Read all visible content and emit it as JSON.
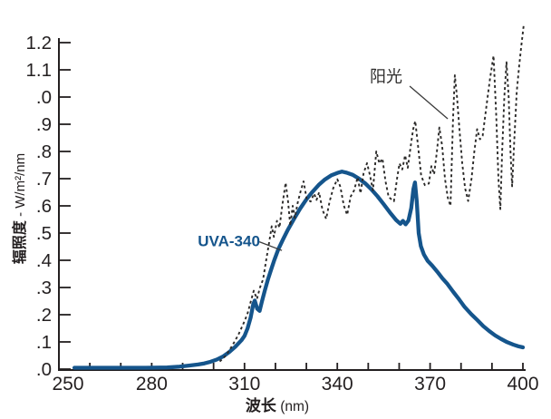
{
  "chart_data": {
    "type": "line",
    "title": "",
    "xlabel": "波长 (nm)",
    "xlabel_parts": {
      "cjk": "波长",
      "unit": " (nm)"
    },
    "ylabel": "辐照度 - W/m²/nm",
    "ylabel_parts": {
      "cjk": "辐照度",
      "unit": " - W/m²/nm"
    },
    "xlim": [
      250,
      400
    ],
    "ylim": [
      0,
      1.2
    ],
    "grid": false,
    "legend_position": "inline-annotations",
    "x_minor_tick_step_nm": 10,
    "x_major_ticks": [
      250,
      280,
      310,
      340,
      370,
      400
    ],
    "x_major_tick_labels": [
      "250",
      "280",
      "310",
      "340",
      "370",
      "400"
    ],
    "y_tick_step": 0.1,
    "y_tick_values_top_to_bottom": [
      1.2,
      1.1,
      1.0,
      0.9,
      0.8,
      0.7,
      0.6,
      0.5,
      0.4,
      0.3,
      0.2,
      0.1,
      0.0
    ],
    "y_tick_labels_top_to_bottom": [
      "1.2",
      "1.1",
      ".0",
      ".9",
      ".8",
      ".7",
      ".6",
      ".5",
      ".4",
      ".3",
      ".2",
      ".1",
      ".0"
    ],
    "axis_color": "#231f20",
    "series": [
      {
        "name": "UVA-340",
        "color": "#15558c",
        "line_style": "solid",
        "stroke_width": 4.3,
        "points": [
          [
            255,
            0.005
          ],
          [
            262,
            0.005
          ],
          [
            270,
            0.005
          ],
          [
            278,
            0.005
          ],
          [
            285,
            0.006
          ],
          [
            289,
            0.009
          ],
          [
            292,
            0.013
          ],
          [
            295,
            0.017
          ],
          [
            297,
            0.021
          ],
          [
            299,
            0.027
          ],
          [
            301,
            0.035
          ],
          [
            303,
            0.046
          ],
          [
            305,
            0.062
          ],
          [
            307,
            0.082
          ],
          [
            309,
            0.106
          ],
          [
            310,
            0.122
          ],
          [
            311,
            0.15
          ],
          [
            312,
            0.19
          ],
          [
            312.8,
            0.238
          ],
          [
            313.3,
            0.252
          ],
          [
            314.1,
            0.222
          ],
          [
            314.9,
            0.214
          ],
          [
            315.6,
            0.247
          ],
          [
            316.6,
            0.29
          ],
          [
            317.6,
            0.33
          ],
          [
            318.6,
            0.366
          ],
          [
            319.6,
            0.4
          ],
          [
            321,
            0.442
          ],
          [
            322.5,
            0.478
          ],
          [
            324,
            0.512
          ],
          [
            326,
            0.552
          ],
          [
            328,
            0.59
          ],
          [
            330,
            0.624
          ],
          [
            332,
            0.652
          ],
          [
            334,
            0.677
          ],
          [
            336,
            0.697
          ],
          [
            338,
            0.712
          ],
          [
            340,
            0.721
          ],
          [
            341.5,
            0.726
          ],
          [
            343,
            0.722
          ],
          [
            345,
            0.714
          ],
          [
            347,
            0.7
          ],
          [
            349,
            0.683
          ],
          [
            351,
            0.661
          ],
          [
            353,
            0.635
          ],
          [
            355,
            0.606
          ],
          [
            357,
            0.576
          ],
          [
            359,
            0.548
          ],
          [
            360.4,
            0.534
          ],
          [
            361.2,
            0.545
          ],
          [
            362.1,
            0.532
          ],
          [
            363,
            0.546
          ],
          [
            363.9,
            0.592
          ],
          [
            364.6,
            0.662
          ],
          [
            365.1,
            0.686
          ],
          [
            365.7,
            0.615
          ],
          [
            366.3,
            0.5
          ],
          [
            367,
            0.452
          ],
          [
            368,
            0.421
          ],
          [
            369.2,
            0.398
          ],
          [
            370.7,
            0.38
          ],
          [
            372.3,
            0.358
          ],
          [
            374,
            0.333
          ],
          [
            375.6,
            0.313
          ],
          [
            377.4,
            0.285
          ],
          [
            379,
            0.262
          ],
          [
            381.2,
            0.228
          ],
          [
            383.3,
            0.202
          ],
          [
            385.3,
            0.18
          ],
          [
            387.2,
            0.158
          ],
          [
            389.1,
            0.14
          ],
          [
            391,
            0.124
          ],
          [
            392.9,
            0.111
          ],
          [
            394.9,
            0.099
          ],
          [
            396.9,
            0.09
          ],
          [
            398.5,
            0.084
          ],
          [
            400,
            0.08
          ]
        ]
      },
      {
        "name": "阳光",
        "color": "#2b2a29",
        "line_style": "dashed",
        "stroke_width": 1.9,
        "points": [
          [
            302,
            0.028
          ],
          [
            304,
            0.05
          ],
          [
            306,
            0.085
          ],
          [
            308,
            0.126
          ],
          [
            310,
            0.176
          ],
          [
            311,
            0.205
          ],
          [
            312,
            0.247
          ],
          [
            313,
            0.288
          ],
          [
            314,
            0.258
          ],
          [
            315,
            0.3
          ],
          [
            316,
            0.33
          ],
          [
            317,
            0.4
          ],
          [
            318,
            0.468
          ],
          [
            318.8,
            0.525
          ],
          [
            319.5,
            0.486
          ],
          [
            320.5,
            0.545
          ],
          [
            321.3,
            0.52
          ],
          [
            322.2,
            0.6
          ],
          [
            323.3,
            0.685
          ],
          [
            324.1,
            0.615
          ],
          [
            324.8,
            0.527
          ],
          [
            325.6,
            0.6
          ],
          [
            326.3,
            0.556
          ],
          [
            327.2,
            0.612
          ],
          [
            328.2,
            0.656
          ],
          [
            329.1,
            0.69
          ],
          [
            330.1,
            0.626
          ],
          [
            331.4,
            0.616
          ],
          [
            332.5,
            0.645
          ],
          [
            333.3,
            0.622
          ],
          [
            334.1,
            0.65
          ],
          [
            335.2,
            0.586
          ],
          [
            336.4,
            0.552
          ],
          [
            337.5,
            0.616
          ],
          [
            338.7,
            0.666
          ],
          [
            340,
            0.698
          ],
          [
            341,
            0.67
          ],
          [
            342.1,
            0.601
          ],
          [
            343.2,
            0.567
          ],
          [
            344.3,
            0.634
          ],
          [
            345.4,
            0.656
          ],
          [
            346.6,
            0.705
          ],
          [
            347.5,
            0.646
          ],
          [
            348.5,
            0.72
          ],
          [
            349.6,
            0.757
          ],
          [
            350.6,
            0.71
          ],
          [
            351.5,
            0.657
          ],
          [
            352.6,
            0.8
          ],
          [
            353.6,
            0.756
          ],
          [
            354.6,
            0.774
          ],
          [
            355.6,
            0.69
          ],
          [
            356.6,
            0.632
          ],
          [
            358.3,
            0.617
          ],
          [
            359.3,
            0.7
          ],
          [
            360.1,
            0.756
          ],
          [
            361,
            0.734
          ],
          [
            361.9,
            0.786
          ],
          [
            362.8,
            0.74
          ],
          [
            363.6,
            0.81
          ],
          [
            364.5,
            0.88
          ],
          [
            365.2,
            0.912
          ],
          [
            366.1,
            0.82
          ],
          [
            367.1,
            0.712
          ],
          [
            368.3,
            0.676
          ],
          [
            369.6,
            0.682
          ],
          [
            370.4,
            0.746
          ],
          [
            371.3,
            0.716
          ],
          [
            372.2,
            0.8
          ],
          [
            373,
            0.888
          ],
          [
            373.9,
            0.82
          ],
          [
            374.8,
            0.7
          ],
          [
            375.7,
            0.63
          ],
          [
            376.6,
            0.6
          ],
          [
            377.4,
            0.92
          ],
          [
            378,
            1.08
          ],
          [
            378.7,
            1.0
          ],
          [
            379.5,
            0.88
          ],
          [
            380.4,
            0.755
          ],
          [
            381.3,
            0.665
          ],
          [
            382.3,
            0.618
          ],
          [
            383.4,
            0.7
          ],
          [
            384.3,
            0.8
          ],
          [
            385.2,
            0.882
          ],
          [
            386.1,
            0.845
          ],
          [
            387,
            0.858
          ],
          [
            388.2,
            0.965
          ],
          [
            389.4,
            1.07
          ],
          [
            390.5,
            1.152
          ],
          [
            391.4,
            0.93
          ],
          [
            392.1,
            0.7
          ],
          [
            392.7,
            0.588
          ],
          [
            393.3,
            0.8
          ],
          [
            394,
            1.0
          ],
          [
            394.7,
            1.128
          ],
          [
            395.4,
            1.0
          ],
          [
            396,
            0.8
          ],
          [
            396.5,
            0.672
          ],
          [
            397.2,
            0.835
          ],
          [
            398,
            1.02
          ],
          [
            398.8,
            1.115
          ],
          [
            399.5,
            1.19
          ],
          [
            400.3,
            1.268
          ]
        ]
      }
    ],
    "annotations": [
      {
        "id": "sun",
        "text": "阳光",
        "color": "#2e2d2c",
        "bold": false,
        "font_size": 18,
        "anchor": "start",
        "label_data_xy": [
          350.5,
          1.055
        ],
        "leader_data": [
          [
            363.4,
            1.04
          ],
          [
            375.7,
            0.92
          ]
        ]
      },
      {
        "id": "uva340",
        "text": "UVA-340",
        "color": "#15558c",
        "bold": true,
        "font_size": 17,
        "anchor": "start",
        "label_data_xy": [
          294.9,
          0.452
        ],
        "leader_data": [
          [
            314.8,
            0.468
          ],
          [
            322.1,
            0.436
          ]
        ]
      }
    ]
  }
}
